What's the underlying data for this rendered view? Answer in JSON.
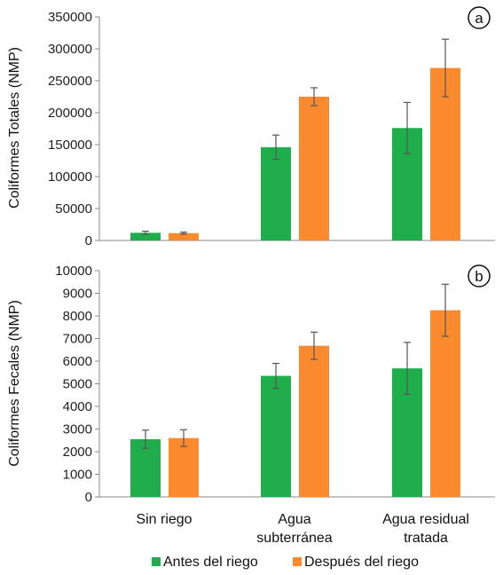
{
  "chart_data": [
    {
      "type": "bar",
      "panel_label": "a",
      "categories": [
        "Sin riego",
        "Agua subterránea",
        "Agua residual tratada"
      ],
      "ylabel": "Coliformes Totales (NMP)",
      "ylim": [
        0,
        350000
      ],
      "yticks": [
        "0",
        "50000",
        "100000",
        "150000",
        "200000",
        "250000",
        "300000",
        "350000"
      ],
      "grid": false,
      "series": [
        {
          "name": "Antes del riego",
          "color": "#1fae4b",
          "values": [
            12000,
            146000,
            176000
          ],
          "errors": [
            2500,
            19000,
            40000
          ]
        },
        {
          "name": "Después del riego",
          "color": "#fb8a2e",
          "values": [
            11500,
            225000,
            270000
          ],
          "errors": [
            1500,
            14000,
            45000
          ]
        }
      ]
    },
    {
      "type": "bar",
      "panel_label": "b",
      "categories": [
        "Sin riego",
        "Agua subterránea",
        "Agua residual tratada"
      ],
      "ylabel": "Coliformes Fecales (NMP)",
      "ylim": [
        0,
        10000
      ],
      "yticks": [
        "0",
        "1000",
        "2000",
        "3000",
        "4000",
        "5000",
        "6000",
        "7000",
        "8000",
        "9000",
        "10000"
      ],
      "grid": false,
      "series": [
        {
          "name": "Antes del riego",
          "color": "#1fae4b",
          "values": [
            2550,
            5350,
            5680
          ],
          "errors": [
            400,
            550,
            1150
          ]
        },
        {
          "name": "Después del riego",
          "color": "#fb8a2e",
          "values": [
            2600,
            6680,
            8250
          ],
          "errors": [
            370,
            600,
            1150
          ]
        }
      ]
    }
  ],
  "x_axis": {
    "category_labels": [
      {
        "line1": "Sin riego",
        "line2": ""
      },
      {
        "line1": "Agua",
        "line2": "subterránea"
      },
      {
        "line1": "Agua residual",
        "line2": "tratada"
      }
    ]
  },
  "legend": {
    "placement": "bottom",
    "items": [
      {
        "label": "Antes del riego",
        "color": "#1fae4b"
      },
      {
        "label": "Después del riego",
        "color": "#fb8a2e"
      }
    ]
  }
}
